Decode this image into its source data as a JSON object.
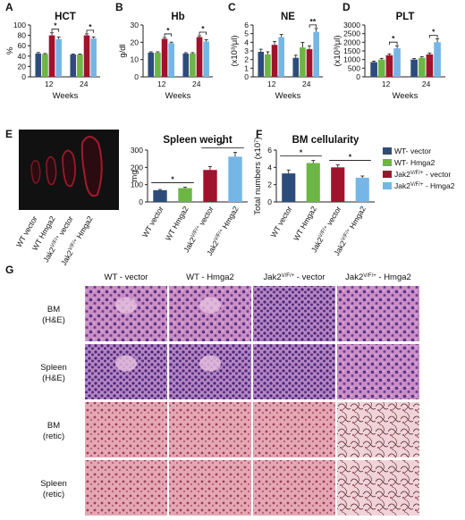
{
  "colors": {
    "wt_vector": "#2d4c7c",
    "wt_hmga2": "#6db544",
    "jak2_vector": "#a0132c",
    "jak2_hmga2": "#76b6e6",
    "axis": "#222222"
  },
  "legend": {
    "items": [
      {
        "key": "wt_vector",
        "label": "WT- vector"
      },
      {
        "key": "wt_hmga2",
        "label": "WT- Hmga2"
      },
      {
        "key": "jak2_vector",
        "label": "Jak2V/F/+ - vector"
      },
      {
        "key": "jak2_hmga2",
        "label": "Jak2V/F/+ - Hmga2"
      }
    ]
  },
  "chart_data": [
    {
      "panel": "A",
      "type": "bar",
      "title": "HCT",
      "ylabel": "%",
      "xlabel": "Weeks",
      "categories": [
        "12",
        "24"
      ],
      "ylim": [
        0,
        100
      ],
      "yticks": [
        "0",
        "20",
        "40",
        "60",
        "80",
        "100"
      ],
      "series": [
        {
          "name": "WT- vector",
          "values": [
            45,
            43
          ]
        },
        {
          "name": "WT- Hmga2",
          "values": [
            44,
            43
          ]
        },
        {
          "name": "Jak2V/F/+ - vector",
          "values": [
            80,
            80
          ]
        },
        {
          "name": "Jak2V/F/+ - Hmga2",
          "values": [
            73,
            74
          ]
        }
      ],
      "errors": [
        [
          2,
          1
        ],
        [
          1,
          1
        ],
        [
          5,
          3
        ],
        [
          4,
          3
        ]
      ],
      "sig": [
        "*",
        "*"
      ]
    },
    {
      "panel": "B",
      "type": "bar",
      "title": "Hb",
      "ylabel": "g/dl",
      "xlabel": "Weeks",
      "categories": [
        "12",
        "24"
      ],
      "ylim": [
        0,
        30
      ],
      "yticks": [
        "0",
        "10",
        "20",
        "30"
      ],
      "series": [
        {
          "name": "WT- vector",
          "values": [
            14,
            13.5
          ]
        },
        {
          "name": "WT- Hmga2",
          "values": [
            14,
            13.5
          ]
        },
        {
          "name": "Jak2V/F/+ - vector",
          "values": [
            22,
            23
          ]
        },
        {
          "name": "Jak2V/F/+ - Hmga2",
          "values": [
            19.5,
            20.5
          ]
        }
      ],
      "errors": [
        [
          0.5,
          0.5
        ],
        [
          0.5,
          0.5
        ],
        [
          0.8,
          0.8
        ],
        [
          0.6,
          1
        ]
      ],
      "sig": [
        "*",
        "*"
      ]
    },
    {
      "panel": "C",
      "type": "bar",
      "title": "NE",
      "ylabel": "(x10³/μl)",
      "xlabel": "Weeks",
      "categories": [
        "12",
        "24"
      ],
      "ylim": [
        0,
        6
      ],
      "yticks": [
        "0",
        "1",
        "2",
        "3",
        "4",
        "5",
        "6"
      ],
      "series": [
        {
          "name": "WT- vector",
          "values": [
            2.9,
            2.2
          ]
        },
        {
          "name": "WT- Hmga2",
          "values": [
            2.6,
            3.4
          ]
        },
        {
          "name": "Jak2V/F/+ - vector",
          "values": [
            3.7,
            3.2
          ]
        },
        {
          "name": "Jak2V/F/+ - Hmga2",
          "values": [
            4.6,
            5.2
          ]
        }
      ],
      "errors": [
        [
          0.3,
          0.3
        ],
        [
          0.3,
          0.6
        ],
        [
          0.4,
          0.4
        ],
        [
          0.3,
          0.4
        ]
      ],
      "sig": [
        "",
        "**"
      ]
    },
    {
      "panel": "D",
      "type": "bar",
      "title": "PLT",
      "ylabel": "(x10³/μl)",
      "xlabel": "Weeks",
      "categories": [
        "12",
        "24"
      ],
      "ylim": [
        0,
        3000
      ],
      "yticks": [
        "0",
        "500",
        "1000",
        "1500",
        "2000",
        "2500",
        "3000"
      ],
      "series": [
        {
          "name": "WT- vector",
          "values": [
            850,
            1000
          ]
        },
        {
          "name": "WT- Hmga2",
          "values": [
            1000,
            1100
          ]
        },
        {
          "name": "Jak2V/F/+ - vector",
          "values": [
            1250,
            1300
          ]
        },
        {
          "name": "Jak2V/F/+ - Hmga2",
          "values": [
            1650,
            2000
          ]
        }
      ],
      "errors": [
        [
          60,
          60
        ],
        [
          70,
          70
        ],
        [
          80,
          80
        ],
        [
          150,
          200
        ]
      ],
      "sig": [
        "*",
        "*"
      ]
    },
    {
      "panel": "E",
      "type": "bar",
      "title": "Spleen weight",
      "ylabel": "mg",
      "categories": [
        "WT vector",
        "WT Hmga2",
        "Jak2V/F/+ vector",
        "Jak2V/F/+ Hmga2"
      ],
      "ylim": [
        0,
        300
      ],
      "yticks": [
        "0",
        "100",
        "200",
        "300"
      ],
      "values": [
        68,
        80,
        185,
        262
      ],
      "errors": [
        4,
        5,
        20,
        25
      ],
      "sig": [
        "*",
        "*"
      ]
    },
    {
      "panel": "F",
      "type": "bar",
      "title": "BM cellularity",
      "ylabel": "Total numbers (x10⁷)",
      "categories": [
        "WT vector",
        "WT Hmga2",
        "Jak2V/F/+ vector",
        "Jak2V/F/+ Hmga2"
      ],
      "ylim": [
        0,
        6
      ],
      "yticks": [
        "0",
        "2",
        "4",
        "6"
      ],
      "values": [
        3.3,
        4.5,
        4.0,
        2.8
      ],
      "errors": [
        0.4,
        0.3,
        0.3,
        0.2
      ],
      "sig": [
        "*",
        "*"
      ]
    }
  ],
  "photo_labels": [
    "WT vector",
    "WT Hmga2",
    "Jak2V/F/+ vector",
    "Jak2V/F/+ Hmga2"
  ],
  "histology": {
    "panel": "G",
    "columns": [
      "WT - vector",
      "WT - Hmga2",
      "Jak2V/F/+ - vector",
      "Jak2V/F/+ - Hmga2"
    ],
    "rows": [
      "BM (H&E)",
      "Spleen (H&E)",
      "BM (retic)",
      "Spleen (retic)"
    ]
  }
}
